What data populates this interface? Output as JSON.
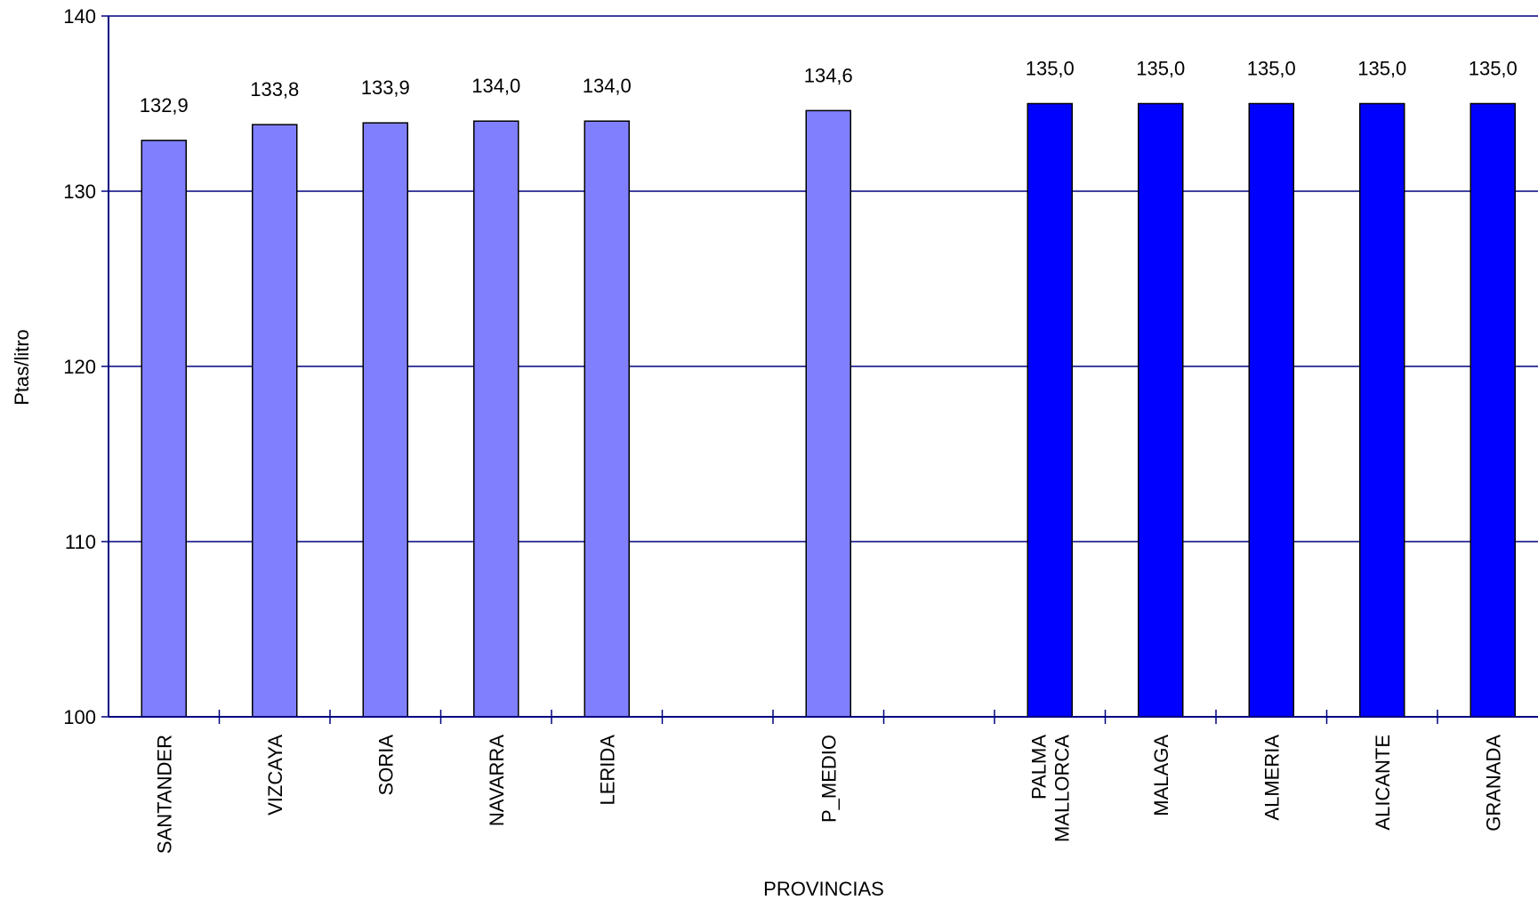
{
  "chart_data": {
    "type": "bar",
    "title": "",
    "xlabel": "PROVINCIAS",
    "ylabel": "Ptas/litro",
    "ylim": [
      100,
      140
    ],
    "yticks": [
      "100",
      "110",
      "120",
      "130",
      "140"
    ],
    "grid": true,
    "legend": "none",
    "categories": [
      "SANTANDER",
      "VIZCAYA",
      "SORIA",
      "NAVARRA",
      "LERIDA",
      "",
      "P_MEDIO",
      "",
      "PALMA\nMALLORCA",
      "MALAGA",
      "ALMERIA",
      "ALICANTE",
      "GRANADA",
      ""
    ],
    "values": [
      132.9,
      133.8,
      133.9,
      134.0,
      134.0,
      null,
      134.6,
      null,
      135.0,
      135.0,
      135.0,
      135.0,
      135.0,
      null
    ],
    "value_labels": [
      "132,9",
      "133,8",
      "133,9",
      "134,0",
      "134,0",
      "",
      "134,6",
      "",
      "135,0",
      "135,0",
      "135,0",
      "135,0",
      "135,0",
      ""
    ],
    "bar_colors": [
      "#8080ff",
      "#8080ff",
      "#8080ff",
      "#8080ff",
      "#8080ff",
      "",
      "#8080ff",
      "",
      "#0000ff",
      "#0000ff",
      "#0000ff",
      "#0000ff",
      "#0000ff",
      ""
    ]
  },
  "colors": {
    "axis": "#000080",
    "grid": "#000080",
    "light_bar": "#8080ff",
    "dark_bar": "#0000ff",
    "bar_stroke": "#000000"
  }
}
